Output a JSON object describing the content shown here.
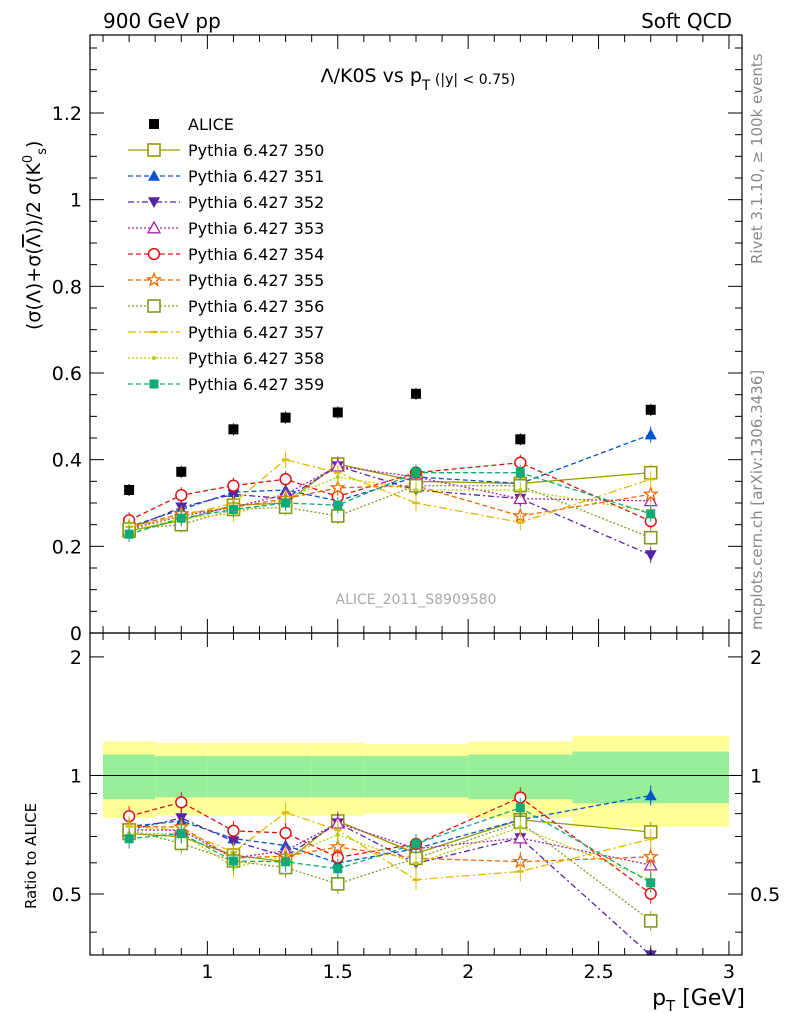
{
  "header": {
    "left": "900 GeV pp",
    "right": "Soft QCD"
  },
  "side_labels": {
    "upper": "Rivet 3.1.10, ≥ 100k events",
    "lower": "mcplots.cern.ch [arXiv:1306.3436]"
  },
  "watermark": "ALICE_2011_S8909580",
  "chart_data": {
    "type": "scatter",
    "title": "Λ/K0S vs pT (|y| < 0.75)",
    "ylabel_main": "(σ(Λ)+σ(Λ̄))/2 σ(K0s)",
    "ylabel_ratio": "Ratio to ALICE",
    "xlabel": "pT [GeV]",
    "xlim": [
      0.55,
      3.05
    ],
    "ylim_main": [
      0,
      1.38
    ],
    "ylim_ratio": [
      0.35,
      2.3
    ],
    "ratio_yscale": "log",
    "x_ticks": [
      "1",
      "1.5",
      "2",
      "2.5",
      "3"
    ],
    "y_ticks_main": [
      "0",
      "0.2",
      "0.4",
      "0.6",
      "0.8",
      "1",
      "1.2"
    ],
    "y_ticks_ratio": [
      "0.5",
      "1",
      "2"
    ],
    "x": [
      0.7,
      0.9,
      1.1,
      1.3,
      1.5,
      1.8,
      2.2,
      2.7
    ],
    "data": {
      "name": "ALICE",
      "values": [
        0.33,
        0.372,
        0.47,
        0.497,
        0.509,
        0.552,
        0.447,
        0.515
      ],
      "color": "#000000"
    },
    "band_edges": [
      0.6,
      0.8,
      1.0,
      1.2,
      1.4,
      1.6,
      2.0,
      2.4,
      3.0
    ],
    "band_inner": [
      0.13,
      0.12,
      0.12,
      0.12,
      0.12,
      0.12,
      0.13,
      0.15
    ],
    "band_outer": [
      0.22,
      0.21,
      0.21,
      0.21,
      0.21,
      0.2,
      0.22,
      0.26
    ],
    "series": [
      {
        "name": "Pythia 6.427 350",
        "color": "#999900",
        "marker": "open-square",
        "dash": "",
        "values": [
          0.235,
          0.26,
          0.295,
          0.3,
          0.39,
          0.35,
          0.345,
          0.37
        ]
      },
      {
        "name": "Pythia 6.427 351",
        "color": "#0055cc",
        "marker": "filled-triangle-up",
        "dash": "5,3",
        "values": [
          0.245,
          0.285,
          0.325,
          0.33,
          0.305,
          0.36,
          0.345,
          0.458
        ]
      },
      {
        "name": "Pythia 6.427 352",
        "color": "#5522aa",
        "marker": "filled-triangle-down",
        "dash": "6,3,2,3",
        "values": [
          0.24,
          0.29,
          0.32,
          0.31,
          0.385,
          0.33,
          0.31,
          0.18
        ]
      },
      {
        "name": "Pythia 6.427 353",
        "color": "#aa22aa",
        "marker": "open-triangle-up",
        "dash": "2,2",
        "values": [
          0.24,
          0.27,
          0.29,
          0.32,
          0.385,
          0.36,
          0.31,
          0.305
        ]
      },
      {
        "name": "Pythia 6.427 354",
        "color": "#dd1111",
        "marker": "open-circle",
        "dash": "5,3",
        "values": [
          0.26,
          0.318,
          0.34,
          0.355,
          0.315,
          0.37,
          0.393,
          0.258
        ]
      },
      {
        "name": "Pythia 6.427 355",
        "color": "#ee6600",
        "marker": "open-star",
        "dash": "5,3",
        "values": [
          0.245,
          0.275,
          0.29,
          0.31,
          0.335,
          0.34,
          0.27,
          0.32
        ]
      },
      {
        "name": "Pythia 6.427 356",
        "color": "#889922",
        "marker": "open-square",
        "dash": "2,2",
        "values": [
          0.24,
          0.25,
          0.285,
          0.29,
          0.27,
          0.34,
          0.34,
          0.22
        ]
      },
      {
        "name": "Pythia 6.427 357",
        "color": "#ddbb00",
        "marker": "small-dash",
        "dash": "8,3,2,3",
        "values": [
          0.245,
          0.27,
          0.3,
          0.4,
          0.37,
          0.3,
          0.255,
          0.355
        ]
      },
      {
        "name": "Pythia 6.427 358",
        "color": "#bbcc00",
        "marker": "small-dot",
        "dash": "2,2",
        "values": [
          0.235,
          0.265,
          0.275,
          0.31,
          0.36,
          0.33,
          0.33,
          0.28
        ]
      },
      {
        "name": "Pythia 6.427 359",
        "color": "#11aa77",
        "marker": "filled-square",
        "dash": "5,3",
        "values": [
          0.228,
          0.265,
          0.285,
          0.3,
          0.295,
          0.37,
          0.37,
          0.275
        ]
      }
    ]
  }
}
